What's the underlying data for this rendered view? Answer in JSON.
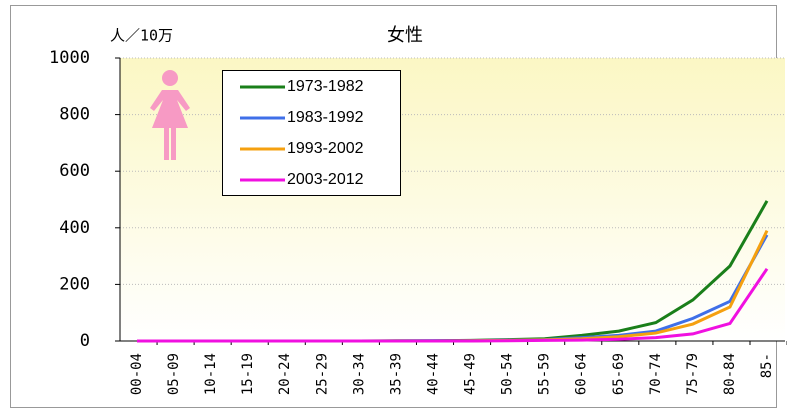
{
  "chart_data": {
    "type": "line",
    "title": "女性",
    "y_label": "人／10万",
    "categories": [
      "00-04",
      "05-09",
      "10-14",
      "15-19",
      "20-24",
      "25-29",
      "30-34",
      "35-39",
      "40-44",
      "45-49",
      "50-54",
      "55-59",
      "60-64",
      "65-69",
      "70-74",
      "75-79",
      "80-84",
      "85-"
    ],
    "series": [
      {
        "name": "1973-1982",
        "color": "#1a7f1a",
        "values": [
          0,
          0,
          0,
          0,
          0,
          0,
          0,
          1,
          1,
          2,
          5,
          8,
          20,
          35,
          65,
          145,
          265,
          495
        ]
      },
      {
        "name": "1983-1992",
        "color": "#3f6fe8",
        "values": [
          0,
          0,
          0,
          0,
          0,
          0,
          0,
          0,
          1,
          1,
          3,
          5,
          12,
          20,
          35,
          80,
          140,
          375
        ]
      },
      {
        "name": "1993-2002",
        "color": "#f5a00f",
        "values": [
          0,
          0,
          0,
          0,
          0,
          0,
          0,
          0,
          0,
          1,
          2,
          4,
          8,
          15,
          28,
          60,
          120,
          390
        ]
      },
      {
        "name": "2003-2012",
        "color": "#f010e0",
        "values": [
          0,
          0,
          0,
          0,
          0,
          0,
          0,
          0,
          0,
          0,
          1,
          2,
          3,
          6,
          12,
          25,
          62,
          255
        ]
      }
    ],
    "ylim": [
      0,
      1000
    ],
    "yticks": [
      0,
      200,
      400,
      600,
      800,
      1000
    ],
    "grid": true
  }
}
